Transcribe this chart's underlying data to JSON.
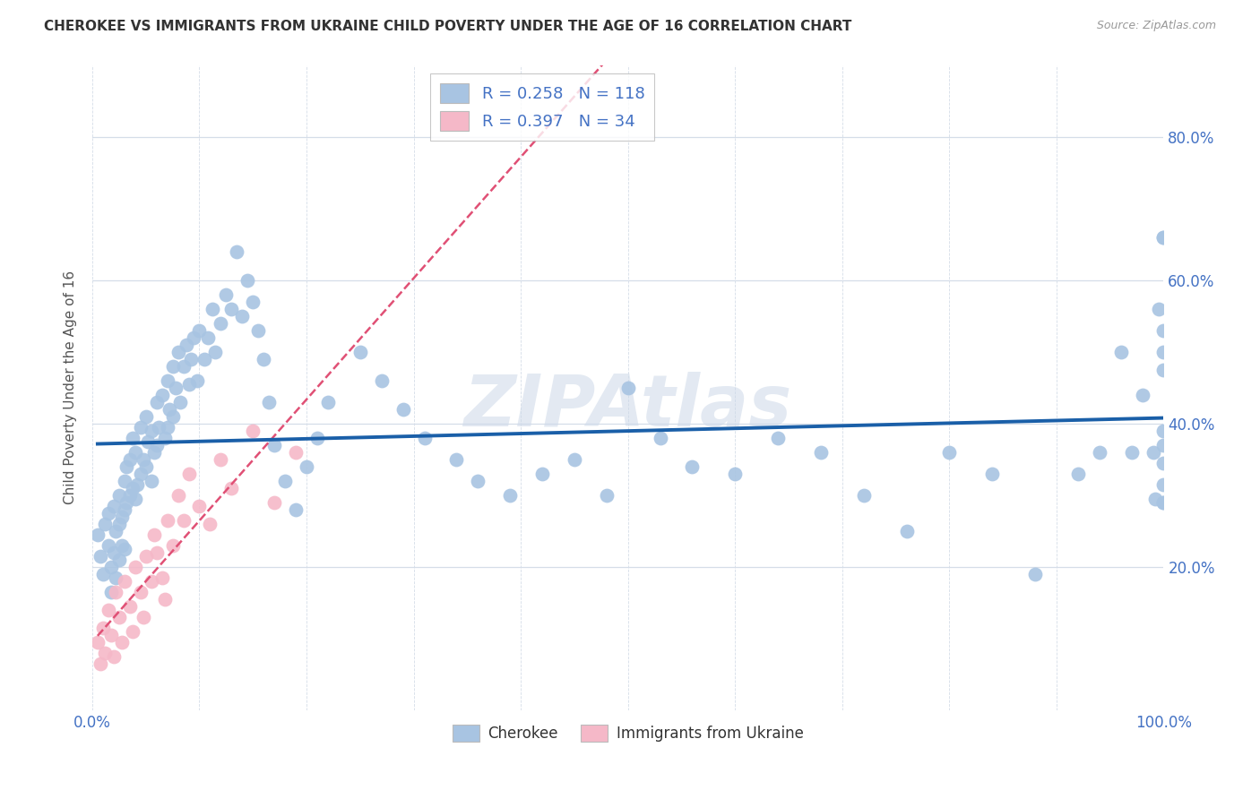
{
  "title": "CHEROKEE VS IMMIGRANTS FROM UKRAINE CHILD POVERTY UNDER THE AGE OF 16 CORRELATION CHART",
  "source": "Source: ZipAtlas.com",
  "ylabel": "Child Poverty Under the Age of 16",
  "xlim": [
    0.0,
    1.0
  ],
  "ylim": [
    0.0,
    0.9
  ],
  "cherokee_R": 0.258,
  "cherokee_N": 118,
  "ukraine_R": 0.397,
  "ukraine_N": 34,
  "cherokee_dot_color": "#a8c4e2",
  "ukraine_dot_color": "#f5b8c8",
  "cherokee_line_color": "#1a5fa8",
  "ukraine_line_color": "#e05075",
  "watermark_color": "#ccd8e8",
  "background_color": "#ffffff",
  "grid_color": "#d5dde8",
  "title_color": "#333333",
  "axis_label_color": "#4472c4",
  "ylabel_color": "#555555",
  "cherokee_x": [
    0.005,
    0.008,
    0.01,
    0.012,
    0.015,
    0.015,
    0.018,
    0.018,
    0.02,
    0.02,
    0.022,
    0.022,
    0.025,
    0.025,
    0.025,
    0.028,
    0.028,
    0.03,
    0.03,
    0.03,
    0.032,
    0.032,
    0.035,
    0.035,
    0.038,
    0.038,
    0.04,
    0.04,
    0.042,
    0.045,
    0.045,
    0.048,
    0.05,
    0.05,
    0.052,
    0.055,
    0.055,
    0.058,
    0.06,
    0.06,
    0.062,
    0.065,
    0.068,
    0.07,
    0.07,
    0.072,
    0.075,
    0.075,
    0.078,
    0.08,
    0.082,
    0.085,
    0.088,
    0.09,
    0.092,
    0.095,
    0.098,
    0.1,
    0.105,
    0.108,
    0.112,
    0.115,
    0.12,
    0.125,
    0.13,
    0.135,
    0.14,
    0.145,
    0.15,
    0.155,
    0.16,
    0.165,
    0.17,
    0.18,
    0.19,
    0.2,
    0.21,
    0.22,
    0.25,
    0.27,
    0.29,
    0.31,
    0.34,
    0.36,
    0.39,
    0.42,
    0.45,
    0.48,
    0.5,
    0.53,
    0.56,
    0.6,
    0.64,
    0.68,
    0.72,
    0.76,
    0.8,
    0.84,
    0.88,
    0.92,
    0.94,
    0.96,
    0.97,
    0.98,
    0.99,
    0.992,
    0.995,
    1.0,
    1.0,
    1.0,
    1.0,
    1.0,
    1.0,
    1.0,
    1.0,
    1.0,
    1.0,
    1.0
  ],
  "cherokee_y": [
    0.245,
    0.215,
    0.19,
    0.26,
    0.23,
    0.275,
    0.2,
    0.165,
    0.285,
    0.22,
    0.25,
    0.185,
    0.3,
    0.26,
    0.21,
    0.27,
    0.23,
    0.32,
    0.28,
    0.225,
    0.34,
    0.29,
    0.35,
    0.3,
    0.38,
    0.31,
    0.36,
    0.295,
    0.315,
    0.395,
    0.33,
    0.35,
    0.41,
    0.34,
    0.375,
    0.39,
    0.32,
    0.36,
    0.43,
    0.37,
    0.395,
    0.44,
    0.38,
    0.46,
    0.395,
    0.42,
    0.48,
    0.41,
    0.45,
    0.5,
    0.43,
    0.48,
    0.51,
    0.455,
    0.49,
    0.52,
    0.46,
    0.53,
    0.49,
    0.52,
    0.56,
    0.5,
    0.54,
    0.58,
    0.56,
    0.64,
    0.55,
    0.6,
    0.57,
    0.53,
    0.49,
    0.43,
    0.37,
    0.32,
    0.28,
    0.34,
    0.38,
    0.43,
    0.5,
    0.46,
    0.42,
    0.38,
    0.35,
    0.32,
    0.3,
    0.33,
    0.35,
    0.3,
    0.45,
    0.38,
    0.34,
    0.33,
    0.38,
    0.36,
    0.3,
    0.25,
    0.36,
    0.33,
    0.19,
    0.33,
    0.36,
    0.5,
    0.36,
    0.44,
    0.36,
    0.295,
    0.56,
    0.5,
    0.66,
    0.315,
    0.66,
    0.37,
    0.29,
    0.53,
    0.475,
    0.39,
    0.345,
    0.29
  ],
  "ukraine_x": [
    0.005,
    0.008,
    0.01,
    0.012,
    0.015,
    0.018,
    0.02,
    0.022,
    0.025,
    0.028,
    0.03,
    0.035,
    0.038,
    0.04,
    0.045,
    0.048,
    0.05,
    0.055,
    0.058,
    0.06,
    0.065,
    0.068,
    0.07,
    0.075,
    0.08,
    0.085,
    0.09,
    0.1,
    0.11,
    0.12,
    0.13,
    0.15,
    0.17,
    0.19
  ],
  "ukraine_y": [
    0.095,
    0.065,
    0.115,
    0.08,
    0.14,
    0.105,
    0.075,
    0.165,
    0.13,
    0.095,
    0.18,
    0.145,
    0.11,
    0.2,
    0.165,
    0.13,
    0.215,
    0.18,
    0.245,
    0.22,
    0.185,
    0.155,
    0.265,
    0.23,
    0.3,
    0.265,
    0.33,
    0.285,
    0.26,
    0.35,
    0.31,
    0.39,
    0.29,
    0.36
  ]
}
